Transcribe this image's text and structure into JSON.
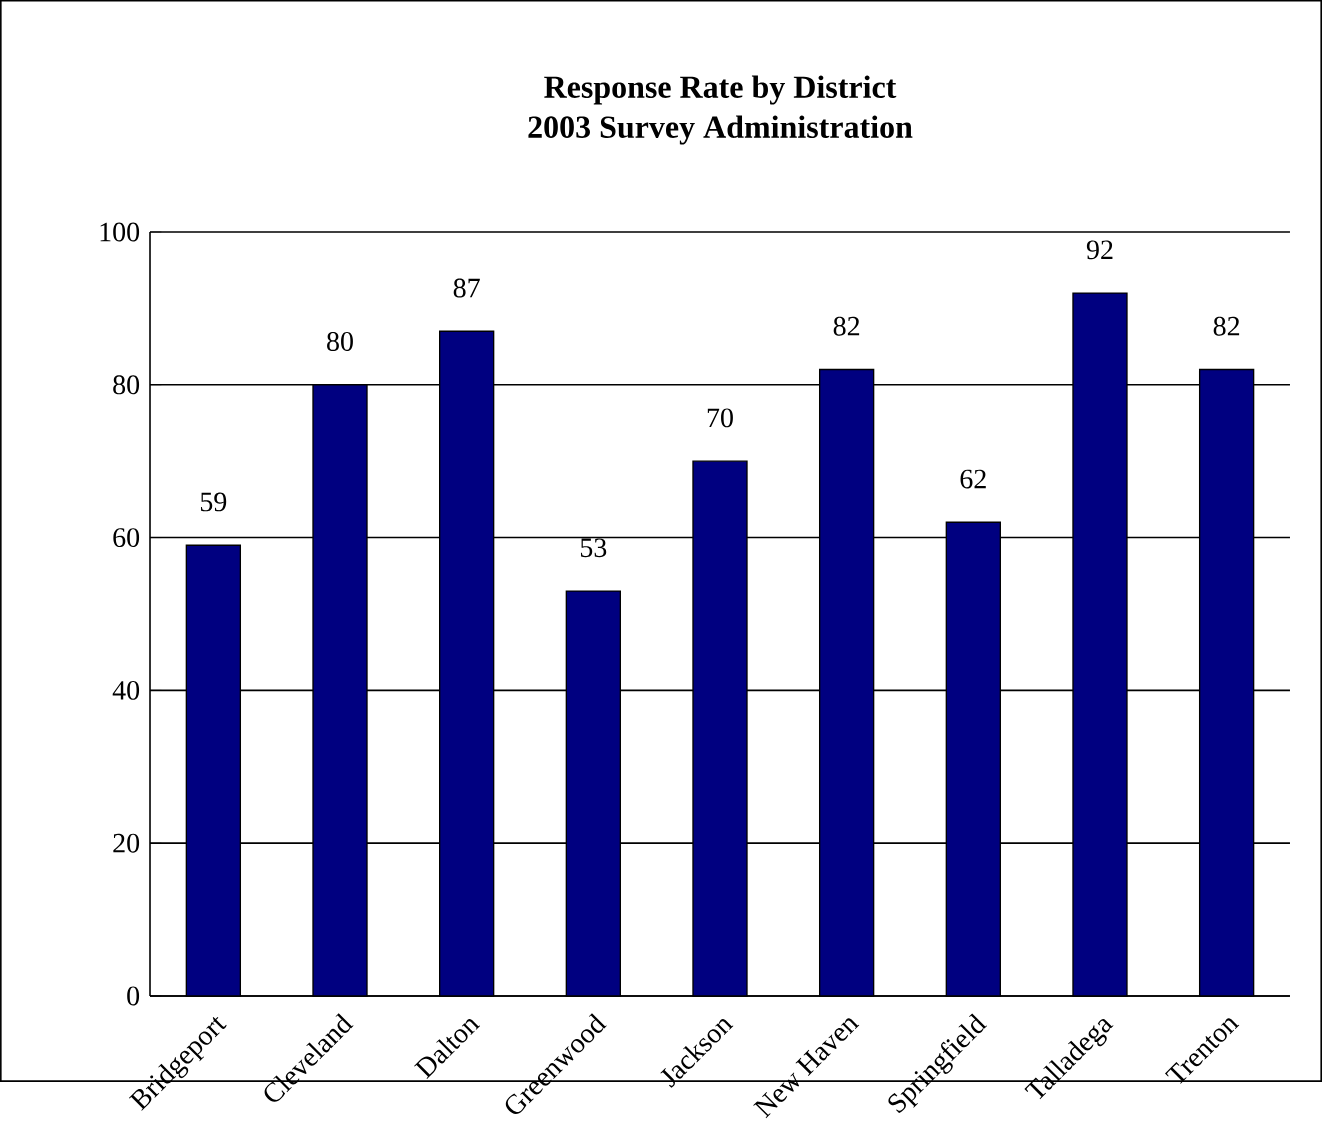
{
  "chart_data": {
    "type": "bar",
    "title": "Response Rate by District",
    "subtitle": "2003 Survey Administration",
    "categories": [
      "Bridgeport",
      "Cleveland",
      "Dalton",
      "Greenwood",
      "Jackson",
      "New Haven",
      "Springfield",
      "Talladega",
      "Trenton"
    ],
    "values": [
      59,
      80,
      87,
      53,
      70,
      82,
      62,
      92,
      82
    ],
    "color": "#000080",
    "ylim": [
      0,
      100
    ],
    "yticks": [
      0,
      20,
      40,
      60,
      80,
      100
    ],
    "grid": "y",
    "data_labels": true
  }
}
